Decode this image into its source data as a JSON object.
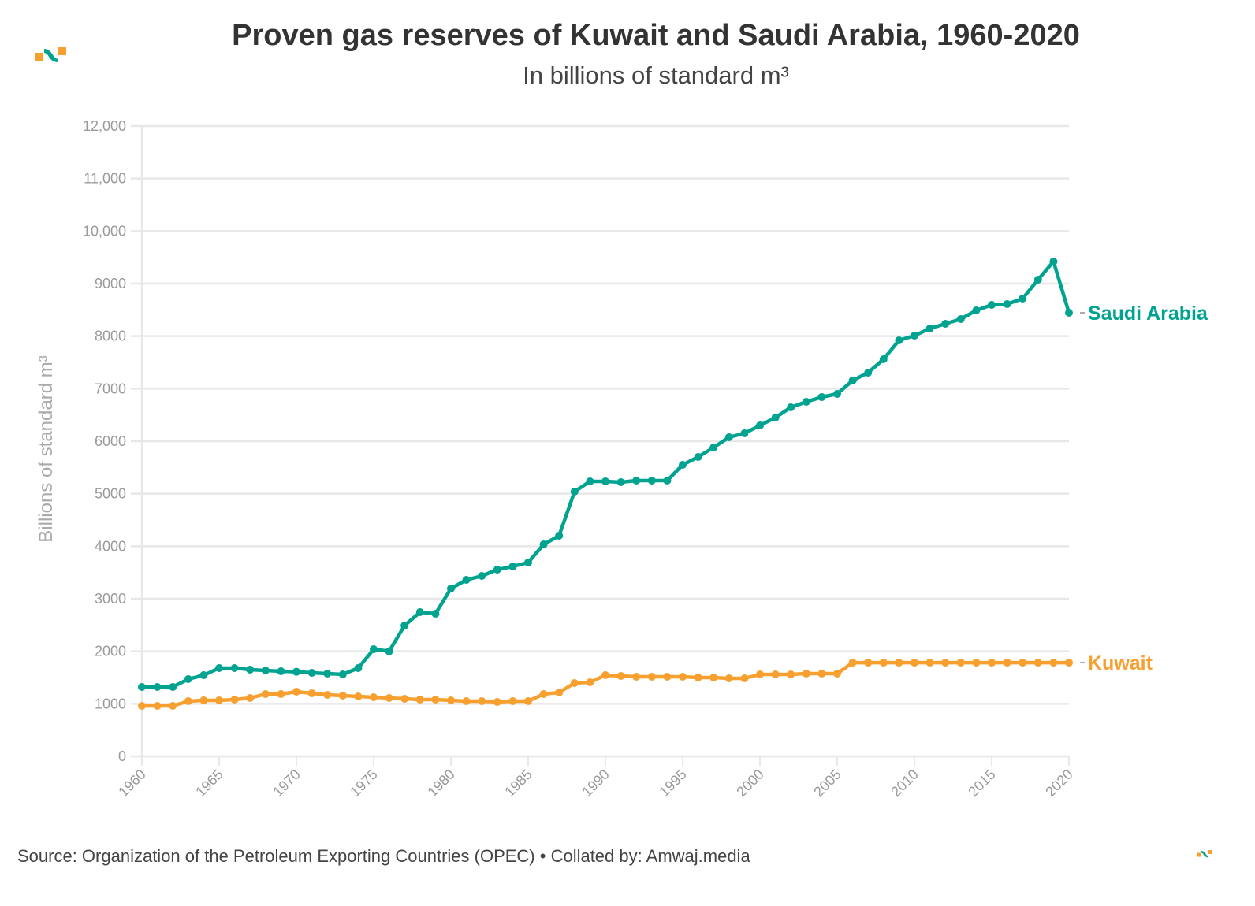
{
  "header": {
    "title": "Proven gas reserves of Kuwait and Saudi Arabia, 1960-2020",
    "subtitle": "In billions of standard m³"
  },
  "footer": {
    "source": "Source: Organization of the Petroleum Exporting Countries (OPEC) • Collated by: Amwaj.media"
  },
  "logo": {
    "name": "amwaj-logo",
    "colors": [
      "#f7a030",
      "#00a38f"
    ]
  },
  "chart_data": {
    "type": "line",
    "title": "Proven gas reserves of Kuwait and Saudi Arabia, 1960-2020",
    "subtitle": "In billions of standard m³",
    "xlabel": "",
    "ylabel": "Billions of standard m³",
    "xlim": [
      1960,
      2020
    ],
    "ylim": [
      0,
      12000
    ],
    "grid": "horizontal",
    "legend": "direct labels at line ends (right)",
    "x_ticks": [
      "1960",
      "1965",
      "1970",
      "1975",
      "1980",
      "1985",
      "1990",
      "1995",
      "2000",
      "2005",
      "2010",
      "2015",
      "2020"
    ],
    "y_ticks": [
      "0",
      "1000",
      "2000",
      "3000",
      "4000",
      "5000",
      "6000",
      "7000",
      "8000",
      "9000",
      "10,000",
      "11,000",
      "12,000"
    ],
    "y_tick_values": [
      0,
      1000,
      2000,
      3000,
      4000,
      5000,
      6000,
      7000,
      8000,
      9000,
      10000,
      11000,
      12000
    ],
    "x": [
      1960,
      1961,
      1962,
      1963,
      1964,
      1965,
      1966,
      1967,
      1968,
      1969,
      1970,
      1971,
      1972,
      1973,
      1974,
      1975,
      1976,
      1977,
      1978,
      1979,
      1980,
      1981,
      1982,
      1983,
      1984,
      1985,
      1986,
      1987,
      1988,
      1989,
      1990,
      1991,
      1992,
      1993,
      1994,
      1995,
      1996,
      1997,
      1998,
      1999,
      2000,
      2001,
      2002,
      2003,
      2004,
      2005,
      2006,
      2007,
      2008,
      2009,
      2010,
      2011,
      2012,
      2013,
      2014,
      2015,
      2016,
      2017,
      2018,
      2019,
      2020
    ],
    "series": [
      {
        "name": "Saudi Arabia",
        "color": "#00a38f",
        "values": [
          1320,
          1320,
          1320,
          1470,
          1545,
          1680,
          1680,
          1650,
          1635,
          1620,
          1610,
          1590,
          1575,
          1560,
          1680,
          2040,
          2000,
          2490,
          2745,
          2715,
          3195,
          3360,
          3435,
          3555,
          3615,
          3690,
          4035,
          4200,
          5040,
          5235,
          5235,
          5220,
          5250,
          5250,
          5250,
          5550,
          5700,
          5880,
          6075,
          6150,
          6300,
          6450,
          6645,
          6750,
          6840,
          6900,
          7155,
          7305,
          7560,
          7920,
          8010,
          8145,
          8235,
          8325,
          8490,
          8595,
          8610,
          8715,
          9075,
          9420,
          8445
        ]
      },
      {
        "name": "Kuwait",
        "color": "#f7a030",
        "values": [
          960,
          960,
          960,
          1050,
          1065,
          1065,
          1080,
          1110,
          1185,
          1185,
          1230,
          1200,
          1170,
          1155,
          1140,
          1125,
          1110,
          1095,
          1080,
          1080,
          1065,
          1050,
          1050,
          1035,
          1050,
          1050,
          1185,
          1215,
          1395,
          1410,
          1545,
          1530,
          1515,
          1515,
          1515,
          1515,
          1500,
          1500,
          1485,
          1485,
          1560,
          1560,
          1560,
          1575,
          1575,
          1575,
          1784,
          1784,
          1784,
          1784,
          1784,
          1784,
          1784,
          1784,
          1784,
          1784,
          1784,
          1784,
          1784,
          1784,
          1784
        ]
      }
    ]
  }
}
